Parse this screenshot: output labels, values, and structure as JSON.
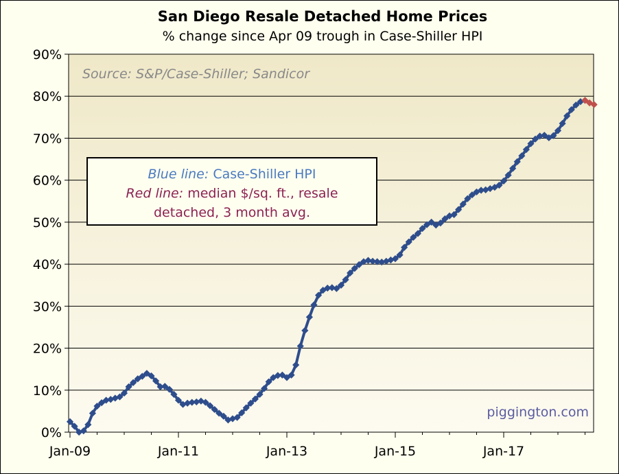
{
  "chart_data": {
    "type": "line",
    "title": "San Diego Resale Detached Home Prices",
    "subtitle": "% change since Apr 09 trough in Case-Shiller HPI",
    "source": "Source: S&P/Case-Shiller; Sandicor",
    "watermark": "piggington.com",
    "ylim": [
      0,
      90
    ],
    "yticks": [
      "0%",
      "10%",
      "20%",
      "30%",
      "40%",
      "50%",
      "60%",
      "70%",
      "80%",
      "90%"
    ],
    "xticks": [
      "Jan-09",
      "Jan-11",
      "Jan-13",
      "Jan-15",
      "Jan-17"
    ],
    "legend": {
      "blue_label": "Blue line:",
      "blue_text": "Case-Shiller HPI",
      "red_label": "Red line:",
      "red_text_1": "median $/sq. ft., resale",
      "red_text_2": "detached, 3 month avg."
    },
    "colors": {
      "blue": "#2e4d8c",
      "red": "#c0504d",
      "plot_bg": "#efe8c8",
      "legend_blue": "#4a7abf",
      "legend_red": "#8b2252"
    },
    "series": [
      {
        "name": "Case-Shiller HPI",
        "x_start": "Jan-09",
        "values": [
          2.5,
          1.4,
          0.0,
          0.3,
          1.8,
          4.5,
          6.2,
          7.0,
          7.6,
          7.8,
          8.1,
          8.4,
          9.3,
          10.8,
          11.8,
          12.7,
          13.3,
          14.0,
          13.4,
          12.2,
          10.8,
          10.9,
          10.2,
          9.0,
          7.6,
          6.6,
          6.9,
          7.1,
          7.2,
          7.4,
          7.1,
          6.3,
          5.4,
          4.5,
          3.8,
          2.9,
          3.2,
          3.5,
          4.6,
          5.8,
          6.9,
          7.9,
          9.0,
          10.4,
          12.0,
          13.0,
          13.5,
          13.6,
          13.0,
          13.6,
          16.0,
          20.5,
          24.2,
          27.4,
          30.3,
          32.6,
          33.8,
          34.3,
          34.4,
          34.2,
          35.0,
          36.3,
          37.9,
          39.0,
          39.9,
          40.6,
          40.9,
          40.7,
          40.6,
          40.5,
          40.7,
          41.0,
          41.3,
          42.2,
          44.0,
          45.3,
          46.4,
          47.3,
          48.5,
          49.4,
          50.0,
          49.3,
          49.8,
          50.8,
          51.5,
          51.8,
          53.0,
          54.3,
          55.6,
          56.5,
          57.2,
          57.6,
          57.7,
          58.0,
          58.3,
          58.8,
          59.8,
          61.2,
          62.8,
          64.4,
          65.8,
          67.3,
          68.7,
          69.8,
          70.5,
          70.7,
          70.1,
          70.6,
          71.8,
          73.5,
          75.3,
          76.8,
          77.9,
          78.7,
          79.0
        ]
      },
      {
        "name": "median $/sq. ft., resale detached, 3 month avg.",
        "x_start": "Jul-18",
        "values": [
          79.0,
          78.4,
          78.0
        ]
      }
    ]
  }
}
